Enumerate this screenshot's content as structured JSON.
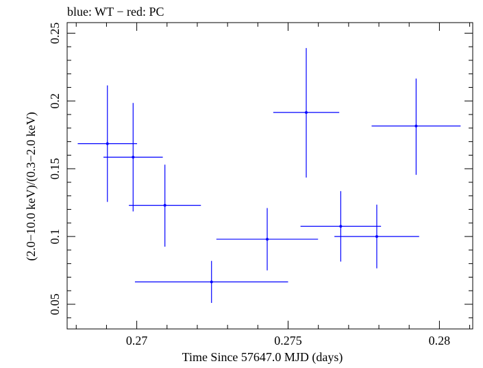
{
  "chart_data": {
    "type": "scatter",
    "title": "blue: WT − red: PC",
    "xlabel": "Time Since 57647.0 MJD (days)",
    "ylabel": "(2.0−10.0 keV)/(0.3−2.0 keV)",
    "xlim": [
      0.2677,
      0.2811
    ],
    "ylim": [
      0.0318,
      0.2578
    ],
    "xticks": [
      0.27,
      0.275,
      0.28
    ],
    "xtick_labels": [
      "0.27",
      "0.275",
      "0.28"
    ],
    "yticks": [
      0.05,
      0.1,
      0.15,
      0.2,
      0.25
    ],
    "ytick_labels": [
      "0.05",
      "0.1",
      "0.15",
      "0.2",
      "0.25"
    ],
    "grid": false,
    "series": [
      {
        "name": "WT",
        "color": "#0000ff",
        "points": [
          {
            "x": 0.26903,
            "y": 0.1685,
            "xerr": 0.00098,
            "ylo": 0.1255,
            "yhi": 0.2115
          },
          {
            "x": 0.26988,
            "y": 0.1585,
            "xerr": 0.00098,
            "ylo": 0.1185,
            "yhi": 0.1985
          },
          {
            "x": 0.27093,
            "y": 0.123,
            "xerr": 0.00119,
            "ylo": 0.0925,
            "yhi": 0.153
          },
          {
            "x": 0.27247,
            "y": 0.0665,
            "xerr": 0.00253,
            "ylo": 0.051,
            "yhi": 0.082
          },
          {
            "x": 0.27431,
            "y": 0.098,
            "xerr": 0.00168,
            "ylo": 0.075,
            "yhi": 0.121
          },
          {
            "x": 0.2756,
            "y": 0.1915,
            "xerr": 0.00109,
            "ylo": 0.1435,
            "yhi": 0.239
          },
          {
            "x": 0.27674,
            "y": 0.1075,
            "xerr": 0.00133,
            "ylo": 0.0815,
            "yhi": 0.1335
          },
          {
            "x": 0.27793,
            "y": 0.1,
            "xerr": 0.0014,
            "ylo": 0.0765,
            "yhi": 0.1235
          },
          {
            "x": 0.27923,
            "y": 0.1815,
            "xerr": 0.00147,
            "ylo": 0.1455,
            "yhi": 0.2165
          }
        ]
      }
    ]
  }
}
